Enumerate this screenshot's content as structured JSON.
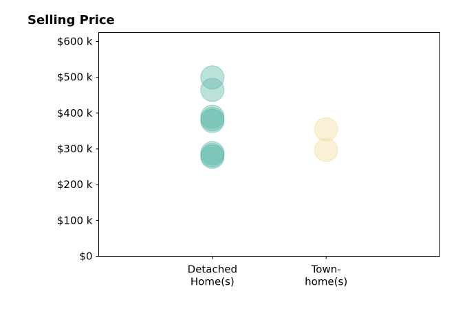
{
  "chart_data": {
    "type": "scatter",
    "title": "Selling Price",
    "xlabel": "",
    "ylabel": "",
    "categories": [
      "Detached\nHome(s)",
      "Town-\nhome(s)"
    ],
    "xlim": [
      0,
      3
    ],
    "ylim": [
      0,
      625000
    ],
    "yticks": [
      0,
      100000,
      200000,
      300000,
      400000,
      500000,
      600000
    ],
    "ytick_labels": [
      "$0",
      "$100 k",
      "$200 k",
      "$300 k",
      "$400 k",
      "$500 k",
      "$600 k"
    ],
    "grid": false,
    "series": [
      {
        "category_index": 0,
        "color": "#5fb8aa",
        "values": [
          500000,
          465000,
          390000,
          383000,
          378000,
          288000,
          282000,
          278000
        ]
      },
      {
        "category_index": 1,
        "color": "#f3dc9a",
        "values": [
          355000,
          297000
        ]
      }
    ]
  }
}
